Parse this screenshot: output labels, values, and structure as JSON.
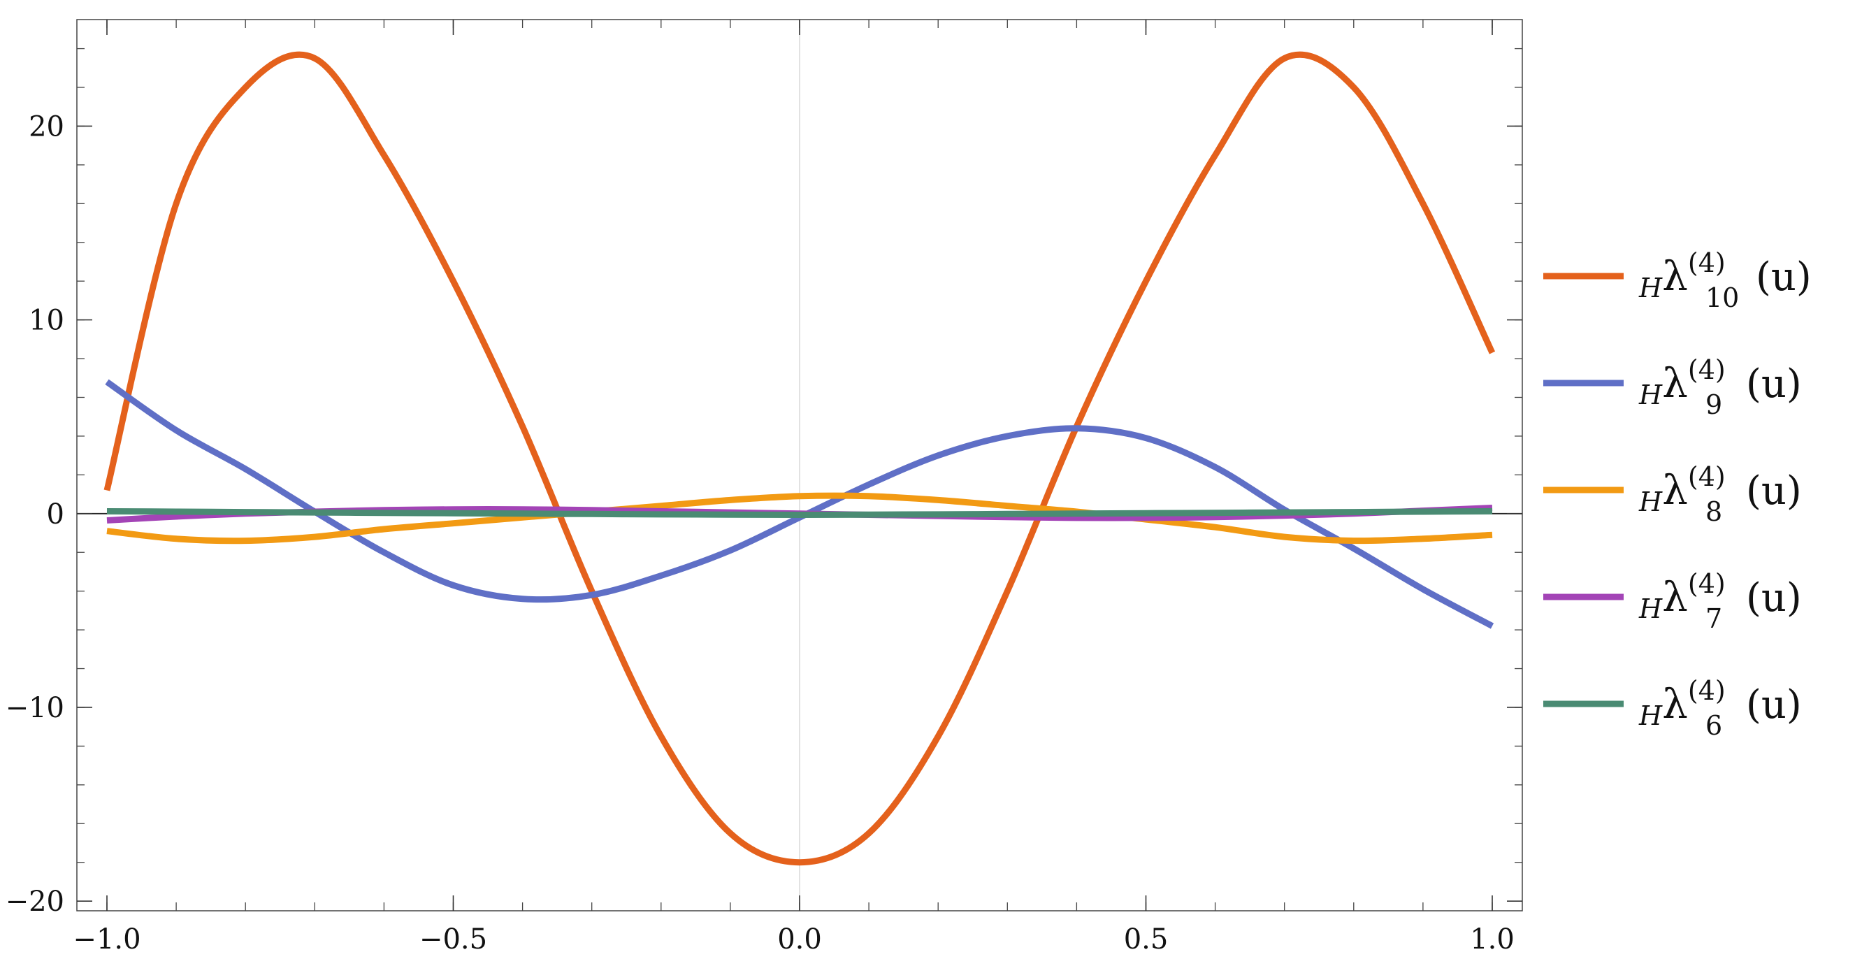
{
  "chart_data": {
    "type": "line",
    "title": "",
    "xlabel": "",
    "ylabel": "",
    "xlim": [
      -1.0,
      1.0
    ],
    "ylim": [
      -20.5,
      25.5
    ],
    "x_ticks": [
      -1.0,
      -0.5,
      0.0,
      0.5,
      1.0
    ],
    "x_tick_labels": [
      "−1.0",
      "−0.5",
      "0.0",
      "0.5",
      "1.0"
    ],
    "y_ticks": [
      -20,
      -10,
      0,
      10,
      20
    ],
    "y_tick_labels": [
      "−20",
      "−10",
      "0",
      "10",
      "20"
    ],
    "grid": false,
    "legend_position": "right",
    "x": [
      -1.0,
      -0.9,
      -0.8,
      -0.7,
      -0.6,
      -0.5,
      -0.4,
      -0.3,
      -0.2,
      -0.1,
      0.0,
      0.1,
      0.2,
      0.3,
      0.4,
      0.5,
      0.6,
      0.7,
      0.8,
      0.9,
      1.0
    ],
    "series": [
      {
        "name": "10",
        "legend_prefix": "H",
        "legend_symbol": "λ",
        "legend_superscript": "(4)",
        "legend_subscript": "10",
        "legend_suffix": "(u)",
        "color": "#E4611C",
        "values": [
          1.2,
          16.0,
          22.0,
          23.5,
          18.5,
          12.0,
          4.5,
          -4.0,
          -11.5,
          -16.5,
          -18.0,
          -16.5,
          -11.5,
          -4.0,
          4.5,
          12.0,
          18.5,
          23.5,
          22.0,
          16.0,
          8.3
        ]
      },
      {
        "name": "9",
        "legend_prefix": "H",
        "legend_symbol": "λ",
        "legend_superscript": "(4)",
        "legend_subscript": "9",
        "legend_suffix": "(u)",
        "color": "#5F6FC6",
        "values": [
          6.8,
          4.3,
          2.3,
          0.1,
          -2.0,
          -3.7,
          -4.4,
          -4.2,
          -3.2,
          -1.9,
          -0.2,
          1.5,
          3.0,
          4.0,
          4.4,
          3.9,
          2.4,
          0.2,
          -1.8,
          -3.9,
          -5.8
        ]
      },
      {
        "name": "8",
        "legend_prefix": "H",
        "legend_symbol": "λ",
        "legend_superscript": "(4)",
        "legend_subscript": "8",
        "legend_suffix": "(u)",
        "color": "#F29A13",
        "values": [
          -0.9,
          -1.3,
          -1.4,
          -1.2,
          -0.8,
          -0.5,
          -0.2,
          0.1,
          0.4,
          0.7,
          0.9,
          0.9,
          0.7,
          0.4,
          0.1,
          -0.3,
          -0.7,
          -1.2,
          -1.4,
          -1.3,
          -1.1
        ]
      },
      {
        "name": "7",
        "legend_prefix": "H",
        "legend_symbol": "λ",
        "legend_superscript": "(4)",
        "legend_subscript": "7",
        "legend_suffix": "(u)",
        "color": "#A344B6",
        "values": [
          -0.35,
          -0.15,
          0.0,
          0.1,
          0.18,
          0.22,
          0.22,
          0.18,
          0.12,
          0.06,
          0.0,
          -0.06,
          -0.12,
          -0.18,
          -0.22,
          -0.22,
          -0.18,
          -0.1,
          0.0,
          0.15,
          0.3
        ]
      },
      {
        "name": "6",
        "legend_prefix": "H",
        "legend_symbol": "λ",
        "legend_superscript": "(4)",
        "legend_subscript": "6",
        "legend_suffix": "(u)",
        "color": "#4A8B73",
        "values": [
          0.12,
          0.1,
          0.08,
          0.06,
          0.04,
          0.02,
          0.0,
          -0.02,
          -0.04,
          -0.05,
          -0.06,
          -0.05,
          -0.04,
          -0.02,
          0.0,
          0.02,
          0.04,
          0.06,
          0.08,
          0.1,
          0.12
        ]
      }
    ]
  }
}
